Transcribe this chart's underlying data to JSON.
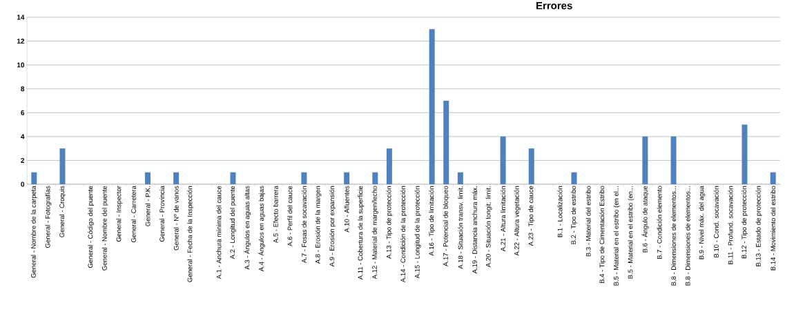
{
  "chart_data": {
    "type": "bar",
    "title": "Errores",
    "categories": [
      "General - Nombre de la carpeta",
      "General - Fotografías",
      "General - Croquis",
      null,
      "General - Código del puente",
      "General - Nombre del puente",
      "General - Inspector",
      "General - Carretera",
      "General - P.K.",
      "General - Provincia",
      "General - Nº de vanos",
      "General - Fecha de la Inspección",
      null,
      "A.1 - Anchura mínima del cauce",
      "A.2 - Longitud del puente",
      "A.3 - Ángulos en aguas altas",
      "A.4 - Ángulos en aguas bajas",
      "A.5 - Efecto barrera",
      "A.6 - Perfil del cauce",
      "A.7 - Fosas de socavación",
      "A.8 - Erosión de la margen",
      "A.9 - Erosión por expansión",
      "A.10 - Afluentes",
      "A.11 - Cobertura de la superficie",
      "A.12 - Material de margen/lecho",
      "A.13 - Tipo de protección",
      "A.14 - Condición de la protección",
      "A.15 - Longitud de la protección",
      "A.16 - Tipo de limitación",
      "A.17 - Potencial de bloqueo",
      "A.18 - Situación transv. limit.",
      "A.19 - Distancia anchura máx.",
      "A.20 - Situación longit. limit.",
      "A.21 - Altura limitación",
      "A.22 - Altura vegetación",
      "A.23 - Tipo de cauce",
      null,
      "B.1 - Localización",
      "B.2 - Tipo de estribo",
      "B.3 - Material del estribo",
      "B.4 - Tipo de Cimentación Estribo",
      "B.5 - Material en el estribo (en el...",
      "B.5 - Material en el estribo (en...",
      "B.6 - Ángulo de ataque",
      "B.7 - Condición elemento",
      "B.8 - Dimensiones de elementos...",
      "B.8 - Dimensiones de elementos...",
      "B.9 - Nivel máx. del agua",
      "B.10 - Cond. socavación",
      "B.11 - Profund. socavación",
      "B.12 - Tipo de protección",
      "B.13 - Estado de protección",
      "B.14 - Movimiento del estribo"
    ],
    "values": [
      1,
      0,
      3,
      0,
      0,
      0,
      0,
      0,
      1,
      0,
      1,
      0,
      0,
      0,
      1,
      0,
      0,
      0,
      0,
      1,
      0,
      0,
      1,
      0,
      1,
      3,
      0,
      0,
      13,
      7,
      1,
      0,
      0,
      4,
      0,
      3,
      0,
      0,
      1,
      0,
      0,
      0,
      0,
      4,
      0,
      4,
      0,
      0,
      0,
      0,
      5,
      0,
      1
    ],
    "color": "#4f81bd",
    "ylim": [
      0,
      14
    ],
    "yticks": [
      0,
      2,
      4,
      6,
      8,
      10,
      12,
      14
    ],
    "grid": true
  }
}
